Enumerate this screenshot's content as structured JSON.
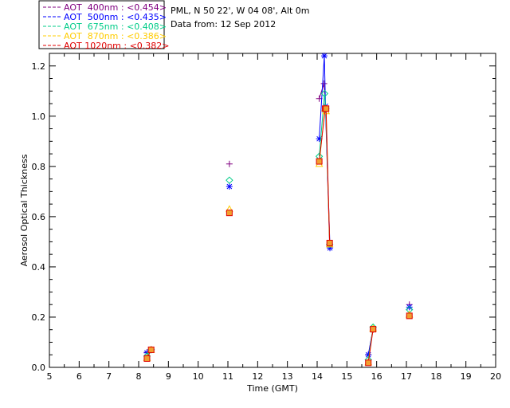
{
  "chart_data": {
    "type": "scatter",
    "info_lines": [
      "PML, N 50 22', W 04 08', Alt 0m",
      "Data from: 12 Sep 2012"
    ],
    "xlabel": "Time (GMT)",
    "ylabel": "Aerosol Optical Thickness",
    "xlim": [
      5,
      20
    ],
    "ylim": [
      0,
      1.25
    ],
    "xticks": [
      5,
      6,
      7,
      8,
      9,
      10,
      11,
      12,
      13,
      14,
      15,
      16,
      17,
      18,
      19,
      20
    ],
    "xtick_labels": [
      "5",
      "6",
      "7",
      "8",
      "9",
      "10",
      "11",
      "12",
      "13",
      "14",
      "15",
      "16",
      "17",
      "18",
      "19",
      "20"
    ],
    "yticks": [
      0,
      0.2,
      0.4,
      0.6,
      0.8,
      1.0,
      1.2
    ],
    "ytick_labels": [
      "0.0",
      "0.2",
      "0.4",
      "0.6",
      "0.8",
      "1.0",
      "1.2"
    ],
    "series": [
      {
        "name": "AOT  400nm : <0.454>",
        "color": "#800080",
        "marker": "plus",
        "segments": [
          [
            [
              8.28,
              0.06
            ],
            [
              8.42,
              0.072
            ]
          ],
          [
            [
              11.05,
              0.81
            ]
          ],
          [
            [
              14.07,
              1.07
            ],
            [
              14.23,
              1.13
            ],
            [
              14.28,
              1.03
            ],
            [
              14.42,
              0.48
            ]
          ],
          [
            [
              15.72,
              0.05
            ],
            [
              15.88,
              0.15
            ]
          ],
          [
            [
              17.1,
              0.25
            ]
          ]
        ]
      },
      {
        "name": "AOT  500nm : <0.435>",
        "color": "#0000ff",
        "marker": "asterisk",
        "segments": [
          [
            [
              8.28,
              0.058
            ],
            [
              8.42,
              0.07
            ]
          ],
          [
            [
              11.05,
              0.72
            ]
          ],
          [
            [
              14.07,
              0.91
            ],
            [
              14.24,
              1.24
            ],
            [
              14.28,
              1.04
            ],
            [
              14.43,
              0.475
            ]
          ],
          [
            [
              15.72,
              0.05
            ],
            [
              15.88,
              0.155
            ]
          ],
          [
            [
              17.1,
              0.24
            ]
          ]
        ]
      },
      {
        "name": "AOT  675nm : <0.408>",
        "color": "#00cc88",
        "marker": "diamond",
        "segments": [
          [
            [
              8.28,
              0.045
            ],
            [
              8.42,
              0.07
            ]
          ],
          [
            [
              11.05,
              0.745
            ]
          ],
          [
            [
              14.07,
              0.84
            ],
            [
              14.25,
              1.09
            ],
            [
              14.29,
              1.03
            ],
            [
              14.42,
              0.49
            ]
          ],
          [
            [
              15.72,
              0.03
            ],
            [
              15.88,
              0.16
            ]
          ],
          [
            [
              17.1,
              0.23
            ]
          ]
        ]
      },
      {
        "name": "AOT  870nm : <0.386>",
        "color": "#ffcc00",
        "marker": "triangle",
        "segments": [
          [
            [
              8.28,
              0.038
            ],
            [
              8.42,
              0.07
            ]
          ],
          [
            [
              11.05,
              0.63
            ]
          ],
          [
            [
              14.07,
              0.81
            ],
            [
              14.26,
              1.03
            ],
            [
              14.3,
              1.02
            ],
            [
              14.42,
              0.49
            ]
          ],
          [
            [
              15.72,
              0.02
            ],
            [
              15.88,
              0.155
            ]
          ],
          [
            [
              17.1,
              0.21
            ]
          ]
        ]
      },
      {
        "name": "AOT 1020nm : <0.382>",
        "color": "#e00000",
        "marker": "square",
        "segments": [
          [
            [
              8.28,
              0.035
            ],
            [
              8.42,
              0.07
            ]
          ],
          [
            [
              11.05,
              0.615
            ]
          ],
          [
            [
              14.07,
              0.82
            ],
            [
              14.27,
              1.03
            ],
            [
              14.3,
              1.03
            ],
            [
              14.42,
              0.495
            ]
          ],
          [
            [
              15.72,
              0.018
            ],
            [
              15.88,
              0.152
            ]
          ],
          [
            [
              17.1,
              0.205
            ]
          ]
        ]
      }
    ],
    "grid": false,
    "legend_position": "top-left, outside plot"
  }
}
